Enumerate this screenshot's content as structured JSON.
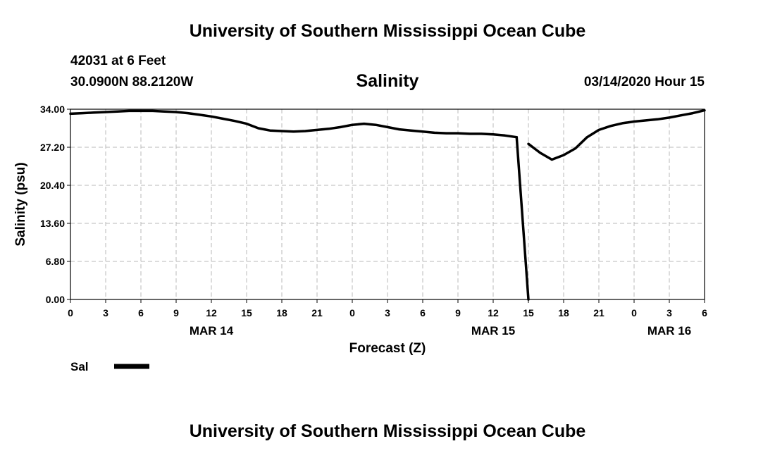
{
  "header": {
    "title": "University of Southern Mississippi Ocean Cube",
    "station": "42031 at 6 Feet",
    "coords": "30.0900N 88.2120W",
    "chart_title": "Salinity",
    "datetime": "03/14/2020 Hour 15"
  },
  "footer": {
    "title": "University of Southern Mississippi Ocean Cube"
  },
  "chart_data": {
    "type": "line",
    "title": "Salinity",
    "xlabel": "Forecast (Z)",
    "ylabel": "Salinity (psu)",
    "ylim": [
      0,
      34
    ],
    "yticks": [
      0,
      6.8,
      13.6,
      20.4,
      27.2,
      34
    ],
    "ytick_labels": [
      "0.00",
      "6.80",
      "13.60",
      "20.40",
      "27.20",
      "34.00"
    ],
    "xlim": [
      0,
      54
    ],
    "xticks": [
      0,
      3,
      6,
      9,
      12,
      15,
      18,
      21,
      24,
      27,
      30,
      33,
      36,
      39,
      42,
      45,
      48,
      51,
      54
    ],
    "xtick_labels": [
      "0",
      "3",
      "6",
      "9",
      "12",
      "15",
      "18",
      "21",
      "0",
      "3",
      "6",
      "9",
      "12",
      "15",
      "18",
      "21",
      "0",
      "3",
      "6"
    ],
    "date_labels": [
      {
        "hour": 12,
        "label": "MAR 14"
      },
      {
        "hour": 36,
        "label": "MAR 15"
      },
      {
        "hour": 51,
        "label": "MAR 16"
      }
    ],
    "grid": true,
    "legend": {
      "position": "bottom-left",
      "entries": [
        "Sal"
      ]
    },
    "series": [
      {
        "name": "Sal",
        "color": "#000000",
        "segments": [
          {
            "x": [
              0,
              1,
              2,
              3,
              4,
              5,
              6,
              7,
              8,
              9,
              10,
              11,
              12,
              13,
              14,
              15,
              16,
              17,
              18,
              19,
              20,
              21,
              22,
              23,
              24,
              25,
              26,
              27,
              28,
              29,
              30,
              31,
              32,
              33,
              34,
              35,
              36,
              37,
              38
            ],
            "y": [
              33.2,
              33.3,
              33.4,
              33.5,
              33.6,
              33.7,
              33.7,
              33.7,
              33.6,
              33.5,
              33.3,
              33.0,
              32.7,
              32.3,
              31.9,
              31.4,
              30.6,
              30.2,
              30.1,
              30.0,
              30.1,
              30.3,
              30.5,
              30.8,
              31.2,
              31.4,
              31.2,
              30.8,
              30.4,
              30.2,
              30.0,
              29.8,
              29.7,
              29.7,
              29.6,
              29.6,
              29.5,
              29.3,
              29.0
            ]
          },
          {
            "x": [
              38,
              39
            ],
            "y": [
              29.0,
              0.0
            ]
          },
          {
            "x": [
              39,
              40,
              41,
              42,
              43,
              44,
              45,
              46,
              47,
              48,
              49,
              50,
              51,
              52,
              53,
              54
            ],
            "y": [
              27.8,
              26.2,
              25.0,
              25.8,
              27.0,
              29.0,
              30.3,
              31.0,
              31.5,
              31.8,
              32.0,
              32.2,
              32.5,
              32.9,
              33.3,
              33.8
            ]
          }
        ]
      }
    ]
  }
}
